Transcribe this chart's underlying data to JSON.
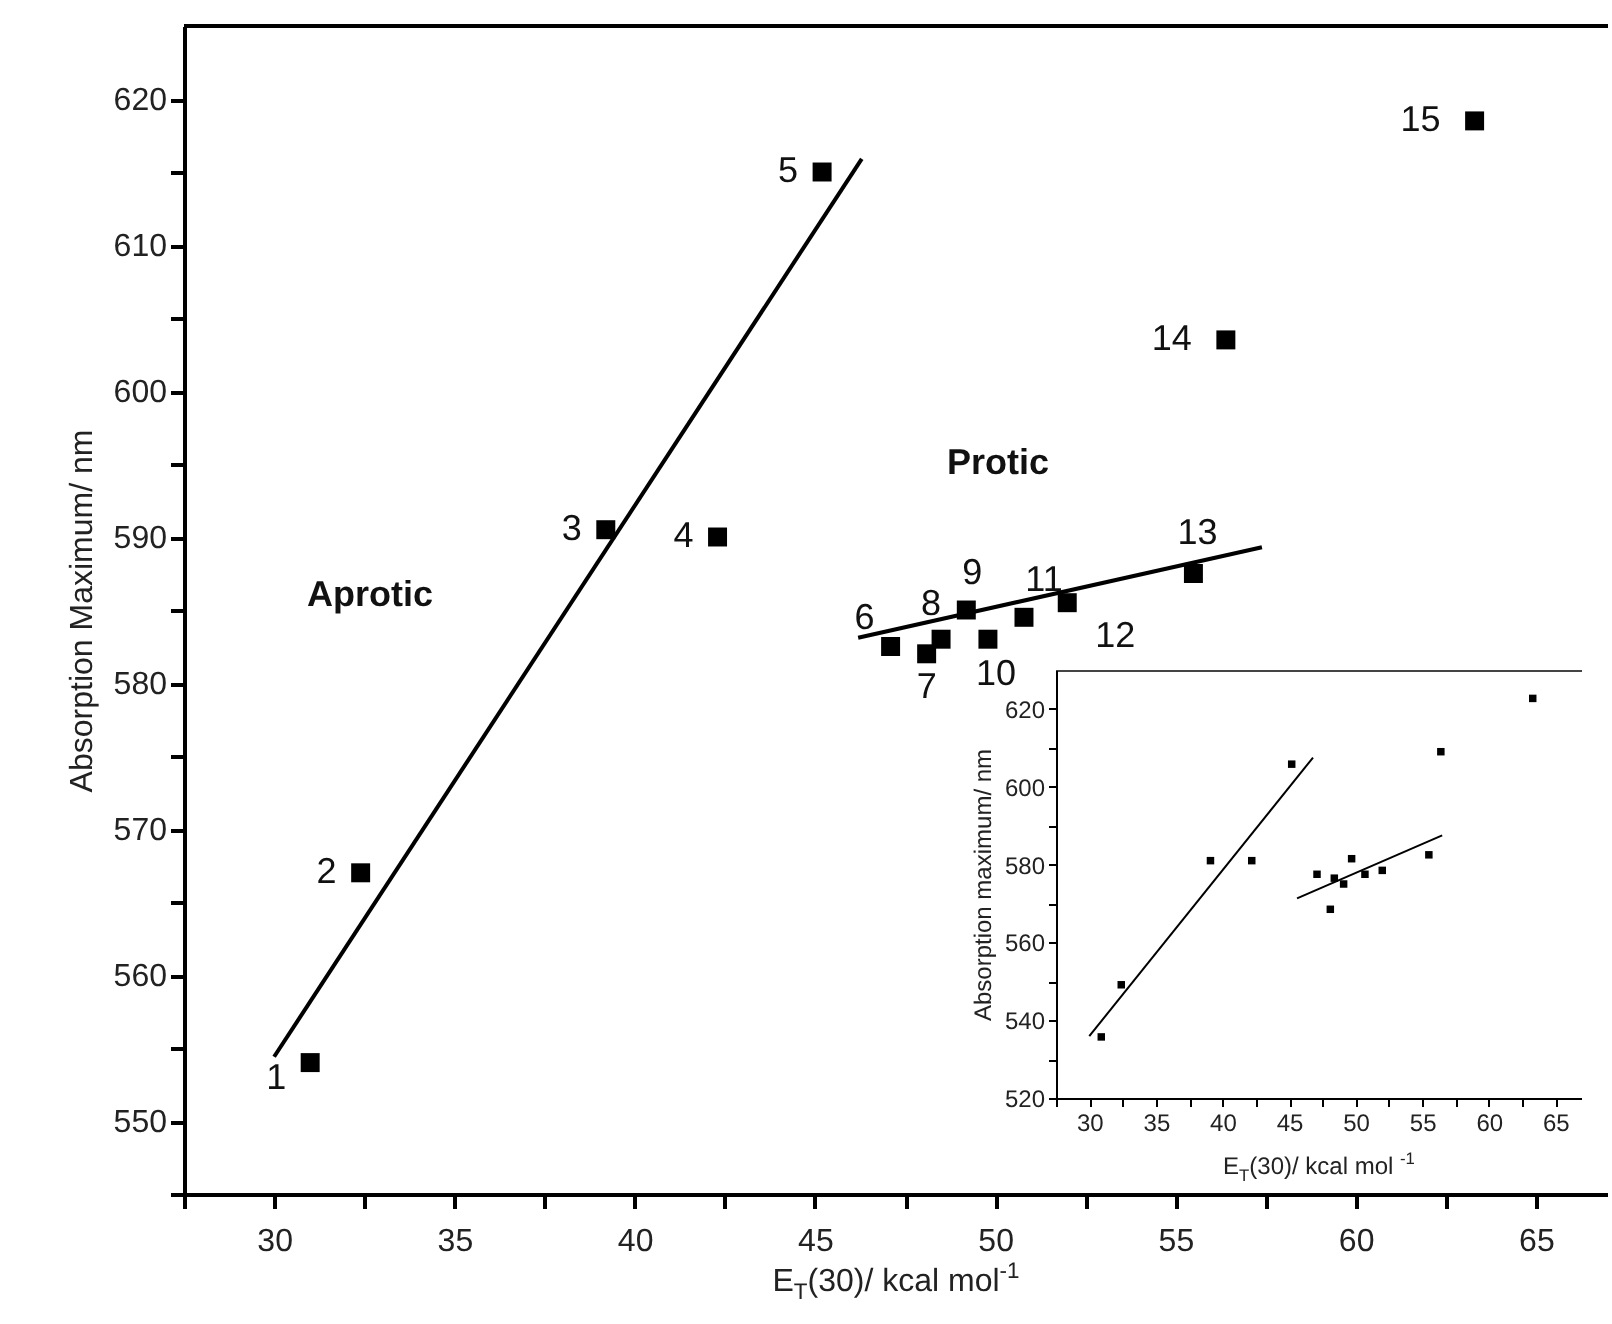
{
  "chart_data": [
    {
      "type": "scatter",
      "xlabel": "E$_{T}$(30)/ kcal mol$^{-1}$",
      "ylabel": "Absorption Maximum/ nm",
      "xlim": [
        27.5,
        67
      ],
      "ylim": [
        545,
        625
      ],
      "xticks": [
        {
          "value": 27.5,
          "label": null
        },
        30,
        {
          "value": 32.5,
          "label": null
        },
        35,
        {
          "value": 37.5,
          "label": null
        },
        40,
        {
          "value": 42.5,
          "label": null
        },
        45,
        {
          "value": 47.5,
          "label": null
        },
        50,
        {
          "value": 52.5,
          "label": null
        },
        55,
        {
          "value": 57.5,
          "label": null
        },
        60,
        {
          "value": 62.5,
          "label": null
        },
        65
      ],
      "yticks": [
        {
          "value": 545,
          "label": null
        },
        550,
        {
          "value": 555,
          "label": null
        },
        560,
        {
          "value": 565,
          "label": null
        },
        570,
        {
          "value": 575,
          "label": null
        },
        580,
        {
          "value": 585,
          "label": null
        },
        590,
        {
          "value": 595,
          "label": null
        },
        600,
        {
          "value": 605,
          "label": null
        },
        610,
        {
          "value": 615,
          "label": null
        },
        620
      ],
      "series": [
        {
          "type": "scatter",
          "marker": "square",
          "color": "#000000",
          "x": [
            31.0,
            32.4,
            39.2,
            42.3,
            45.2,
            47.1,
            48.1,
            48.5,
            49.2,
            49.8,
            50.8,
            52.0,
            55.5,
            56.4,
            63.3
          ],
          "values": [
            554.0,
            567.0,
            590.5,
            590.0,
            615.0,
            582.5,
            582.0,
            583.0,
            585.0,
            583.0,
            584.5,
            585.5,
            587.5,
            603.5,
            618.5
          ]
        },
        {
          "type": "line",
          "marker": "none",
          "color": "#000000",
          "x": [
            30.0,
            46.3
          ],
          "values": [
            554.4,
            615.9
          ]
        },
        {
          "type": "line",
          "marker": "none",
          "color": "#000000",
          "x": [
            46.2,
            57.4
          ],
          "values": [
            583.1,
            589.3
          ]
        }
      ],
      "annotations": [
        {
          "text": "1",
          "x": 31.0,
          "y": 554.0
        },
        {
          "text": "2",
          "x": 32.4,
          "y": 567.0
        },
        {
          "text": "3",
          "x": 39.2,
          "y": 590.5
        },
        {
          "text": "4",
          "x": 42.3,
          "y": 590.0
        },
        {
          "text": "5",
          "x": 45.2,
          "y": 615.0
        },
        {
          "text": "6",
          "x": 47.1,
          "y": 582.5
        },
        {
          "text": "7",
          "x": 48.1,
          "y": 582.0
        },
        {
          "text": "8",
          "x": 48.5,
          "y": 583.0
        },
        {
          "text": "9",
          "x": 49.2,
          "y": 585.0
        },
        {
          "text": "10",
          "x": 49.8,
          "y": 583.0
        },
        {
          "text": "11",
          "x": 50.8,
          "y": 584.5
        },
        {
          "text": "12",
          "x": 52.0,
          "y": 585.5
        },
        {
          "text": "13",
          "x": 55.5,
          "y": 587.5
        },
        {
          "text": "14",
          "x": 56.4,
          "y": 603.5
        },
        {
          "text": "15",
          "x": 63.3,
          "y": 618.5
        },
        "Aprotic",
        "Protic"
      ]
    },
    {
      "type": "scatter",
      "xlabel": "E$_{T}$(30)/ kcal mol $^{-1}$",
      "ylabel": "Absorption maximum/ nm",
      "xlim": [
        27.5,
        67
      ],
      "ylim": [
        520,
        630
      ],
      "xticks": [
        {
          "value": 27.5,
          "label": null
        },
        30,
        {
          "value": 32.5,
          "label": null
        },
        35,
        {
          "value": 37.5,
          "label": null
        },
        40,
        {
          "value": 42.5,
          "label": null
        },
        45,
        {
          "value": 47.5,
          "label": null
        },
        50,
        {
          "value": 52.5,
          "label": null
        },
        55,
        {
          "value": 57.5,
          "label": null
        },
        60,
        {
          "value": 62.5,
          "label": null
        },
        65
      ],
      "yticks": [
        520,
        {
          "value": 530,
          "label": null
        },
        540,
        {
          "value": 550,
          "label": null
        },
        560,
        {
          "value": 570,
          "label": null
        },
        580,
        {
          "value": 590,
          "label": null
        },
        600,
        {
          "value": 610,
          "label": null
        },
        620
      ],
      "series": [
        {
          "type": "scatter",
          "marker": "square",
          "color": "#000000",
          "x": [
            30.9,
            32.4,
            39.1,
            42.2,
            45.2,
            47.1,
            48.1,
            48.4,
            49.1,
            49.7,
            50.7,
            52.0,
            55.5,
            56.4,
            63.3
          ],
          "values": [
            535.7,
            549.1,
            581.0,
            581.0,
            605.8,
            577.5,
            568.5,
            576.5,
            575.0,
            581.5,
            577.5,
            578.5,
            582.5,
            609.0,
            622.7
          ]
        },
        {
          "type": "line",
          "marker": "none",
          "color": "#000000",
          "x": [
            30.0,
            46.8
          ],
          "values": [
            535.9,
            607.5
          ]
        },
        {
          "type": "line",
          "marker": "none",
          "color": "#000000",
          "x": [
            45.6,
            56.5
          ],
          "values": [
            571.3,
            587.5
          ]
        }
      ]
    }
  ]
}
